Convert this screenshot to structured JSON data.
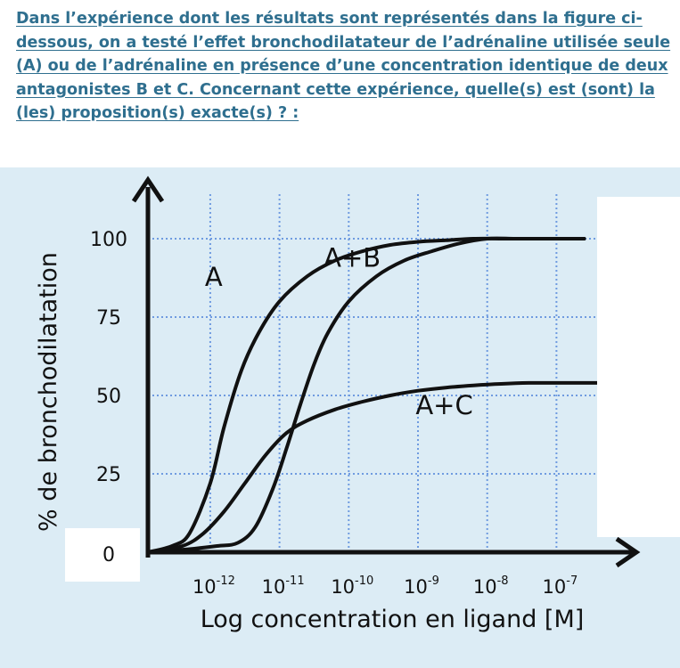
{
  "question": {
    "text": "Dans l’expérience dont les résultats sont représentés dans la figure ci-dessous, on a testé l’effet bronchodilatateur de l’adrénaline utilisée seule (A) ou de l’adrénaline en présence d’une concentration identique de deux antagonistes B et C. Concernant cette expérience, quelle(s) est (sont) la (les) proposition(s) exacte(s) ? :"
  },
  "colors": {
    "question_text": "#2f6f8f",
    "plot_background": "#dcecf5",
    "grid": "#6f9be0",
    "curves": "#111111"
  },
  "chart_data": {
    "type": "line",
    "title": "",
    "xlabel": "Log concentration en ligand [M]",
    "ylabel": "% de bronchodilatation",
    "x_scale": "log",
    "x_tick_labels": [
      {
        "base": "10",
        "exp": "-12"
      },
      {
        "base": "10",
        "exp": "-11"
      },
      {
        "base": "10",
        "exp": "-10"
      },
      {
        "base": "10",
        "exp": "-9"
      },
      {
        "base": "10",
        "exp": "-8"
      },
      {
        "base": "10",
        "exp": "-7"
      }
    ],
    "x_ticks": [
      -12,
      -11,
      -10,
      -9,
      -8,
      -7
    ],
    "xlim": [
      -12.9,
      -6.4
    ],
    "y_ticks": [
      0,
      25,
      50,
      75,
      100
    ],
    "ylim": [
      0,
      115
    ],
    "grid": true,
    "series": [
      {
        "name": "A",
        "x": [
          -12.9,
          -12.55,
          -12.3,
          -12.0,
          -11.8,
          -11.55,
          -11.3,
          -11.0,
          -10.6,
          -10.2,
          -9.8,
          -9.4,
          -9.0,
          -8.6,
          -8.2,
          -7.8,
          -7.4,
          -7.0,
          -6.6
        ],
        "y": [
          0,
          2,
          6,
          22,
          40,
          58,
          70,
          80,
          88,
          93,
          96,
          98,
          99,
          99.5,
          100,
          100,
          100,
          100,
          100
        ]
      },
      {
        "name": "A+B",
        "x": [
          -12.9,
          -12.3,
          -11.9,
          -11.6,
          -11.35,
          -11.1,
          -10.9,
          -10.7,
          -10.5,
          -10.3,
          -10.0,
          -9.6,
          -9.2,
          -8.8,
          -8.4,
          -8.0,
          -7.6,
          -7.2,
          -6.6
        ],
        "y": [
          0,
          1,
          2,
          3,
          8,
          20,
          33,
          47,
          60,
          70,
          80,
          88,
          93,
          96,
          98.5,
          100,
          100,
          100,
          100
        ]
      },
      {
        "name": "A+C",
        "x": [
          -12.9,
          -12.4,
          -12.1,
          -11.8,
          -11.5,
          -11.2,
          -10.9,
          -10.6,
          -10.2,
          -9.8,
          -9.4,
          -9.0,
          -8.6,
          -8.2,
          -7.8,
          -7.4,
          -7.0,
          -6.6,
          -6.4
        ],
        "y": [
          0,
          2,
          6,
          13,
          22,
          31,
          38,
          42,
          45.5,
          48,
          50,
          51.5,
          52.5,
          53.2,
          53.7,
          54,
          54,
          54,
          54
        ]
      }
    ],
    "legend": "none"
  }
}
